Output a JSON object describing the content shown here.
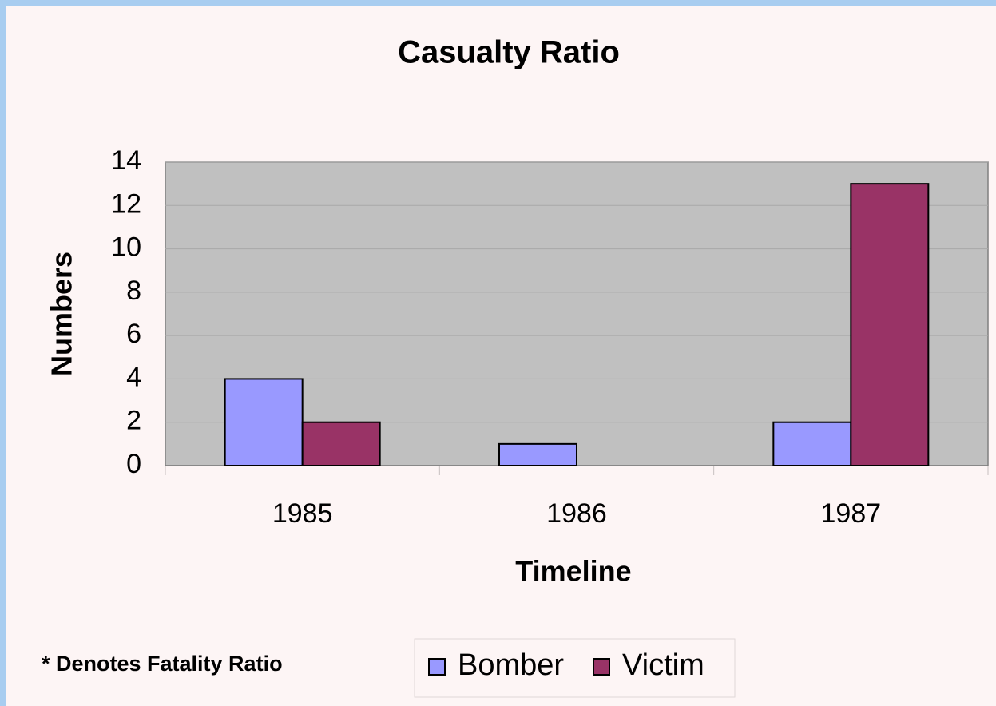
{
  "chart_data": {
    "type": "bar",
    "title": "Casualty Ratio",
    "x_label": "Timeline",
    "y_label": "Numbers",
    "categories": [
      "1985",
      "1986",
      "1987"
    ],
    "series": [
      {
        "name": "Bomber",
        "color": "#9999ff",
        "values": [
          4,
          1,
          2
        ]
      },
      {
        "name": "Victim",
        "color": "#993366",
        "values": [
          2,
          null,
          13
        ]
      }
    ],
    "ylim": [
      0,
      14
    ],
    "yticks": [
      0,
      2,
      4,
      6,
      8,
      10,
      12,
      14
    ],
    "grid": true,
    "legend": "bottom",
    "annotation": "* Denotes Fatality Ratio"
  }
}
